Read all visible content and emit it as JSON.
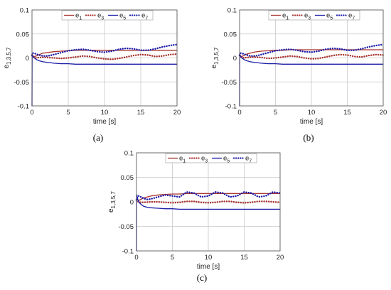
{
  "colors": {
    "e1": "#a8322d",
    "e3": "#a8322d",
    "e5": "#1a1aa8",
    "e7": "#1a1aa8",
    "grid": "#c8c8c8",
    "frame": "#606060"
  },
  "chart_data": [
    {
      "type": "line",
      "caption": "(a)",
      "xlabel": "time [s]",
      "ylabel": "e",
      "ylabel_sub": "1,3,5,7",
      "xlim": [
        0,
        20
      ],
      "ylim": [
        -0.1,
        0.1
      ],
      "xticks": [
        "0",
        "5",
        "10",
        "15",
        "20"
      ],
      "yticks": [
        "-0.1",
        "-0.05",
        "0",
        "0.05",
        "0.1"
      ],
      "grid": true,
      "legend_position": "top",
      "series": [
        {
          "name": "e",
          "sub": "1",
          "style": "solid",
          "x": [
            0,
            0.05,
            0.15,
            0.3,
            0.6,
            1,
            1.5,
            2,
            3,
            4,
            5,
            6,
            7,
            8,
            9,
            10,
            11,
            12,
            13,
            14,
            15,
            16,
            17,
            18,
            19,
            20
          ],
          "y": [
            0.008,
            0.007,
            0.004,
            0.003,
            0.004,
            0.007,
            0.01,
            0.011,
            0.013,
            0.014,
            0.015,
            0.016,
            0.016,
            0.016,
            0.016,
            0.016,
            0.016,
            0.016,
            0.016,
            0.016,
            0.016,
            0.016,
            0.016,
            0.016,
            0.016,
            0.016
          ]
        },
        {
          "name": "e",
          "sub": "3",
          "style": "dotted",
          "x": [
            0,
            0.1,
            0.3,
            0.6,
            1,
            2,
            3,
            4,
            5,
            6,
            7,
            8,
            9,
            10,
            11,
            12,
            13,
            14,
            15,
            16,
            17,
            18,
            19,
            20
          ],
          "y": [
            0.005,
            0.003,
            0.001,
            0,
            0.001,
            0.001,
            0,
            -0.001,
            0,
            0.002,
            0.004,
            0.003,
            0,
            -0.002,
            -0.003,
            -0.001,
            0.002,
            0.005,
            0.007,
            0.006,
            0.003,
            0.004,
            0.007,
            0.008
          ]
        },
        {
          "name": "e",
          "sub": "5",
          "style": "solid",
          "x": [
            0,
            0.02,
            0.05,
            0.1,
            0.2,
            0.4,
            0.7,
            1,
            1.5,
            2,
            3,
            4,
            5,
            6,
            8,
            10,
            12,
            14,
            16,
            18,
            20
          ],
          "y": [
            -0.1,
            0.005,
            0.006,
            0.004,
            0.002,
            -0.001,
            -0.004,
            -0.006,
            -0.008,
            -0.009,
            -0.011,
            -0.012,
            -0.012,
            -0.013,
            -0.013,
            -0.013,
            -0.013,
            -0.013,
            -0.013,
            -0.013,
            -0.013
          ]
        },
        {
          "name": "e",
          "sub": "7",
          "style": "dotted",
          "x": [
            0,
            0.1,
            0.3,
            0.6,
            1,
            1.5,
            2,
            2.5,
            3,
            4,
            5,
            6,
            7,
            8,
            9,
            10,
            11,
            12,
            13,
            14,
            15,
            16,
            17,
            18,
            19,
            20
          ],
          "y": [
            0.006,
            0.01,
            0.01,
            0.008,
            0.006,
            0.004,
            0.004,
            0.005,
            0.007,
            0.011,
            0.015,
            0.017,
            0.018,
            0.016,
            0.013,
            0.012,
            0.014,
            0.018,
            0.02,
            0.019,
            0.016,
            0.016,
            0.019,
            0.023,
            0.026,
            0.028
          ]
        }
      ]
    },
    {
      "type": "line",
      "caption": "(b)",
      "xlabel": "time [s]",
      "ylabel": "e",
      "ylabel_sub": "1,3,5,7",
      "xlim": [
        0,
        20
      ],
      "ylim": [
        -0.1,
        0.1
      ],
      "xticks": [
        "0",
        "5",
        "10",
        "15",
        "20"
      ],
      "yticks": [
        "-0.1",
        "-0.05",
        "0",
        "0.05",
        "0.1"
      ],
      "grid": true,
      "legend_position": "top",
      "series": [
        {
          "name": "e",
          "sub": "1",
          "style": "solid",
          "x": [
            0,
            0.05,
            0.15,
            0.3,
            0.6,
            1,
            1.5,
            2,
            3,
            4,
            5,
            6,
            7,
            8,
            9,
            10,
            11,
            12,
            13,
            14,
            15,
            16,
            17,
            18,
            19,
            20
          ],
          "y": [
            0.008,
            0.007,
            0.004,
            0.003,
            0.005,
            0.008,
            0.01,
            0.012,
            0.014,
            0.015,
            0.016,
            0.016,
            0.017,
            0.017,
            0.017,
            0.017,
            0.017,
            0.017,
            0.017,
            0.017,
            0.017,
            0.017,
            0.017,
            0.017,
            0.017,
            0.017
          ]
        },
        {
          "name": "e",
          "sub": "3",
          "style": "dotted",
          "x": [
            0,
            0.1,
            0.3,
            0.6,
            1,
            2,
            3,
            4,
            5,
            6,
            7,
            8,
            9,
            10,
            11,
            12,
            13,
            14,
            15,
            16,
            17,
            18,
            19,
            20
          ],
          "y": [
            0.005,
            0.003,
            0.001,
            0,
            0.001,
            0.002,
            0.001,
            -0.001,
            0,
            0.002,
            0.004,
            0.003,
            0,
            -0.002,
            -0.001,
            0.002,
            0.005,
            0.007,
            0.006,
            0.003,
            0.002,
            0.005,
            0.007,
            0.006
          ]
        },
        {
          "name": "e",
          "sub": "5",
          "style": "solid",
          "x": [
            0,
            0.02,
            0.05,
            0.1,
            0.2,
            0.4,
            0.7,
            1,
            1.5,
            2,
            3,
            4,
            5,
            6,
            8,
            10,
            12,
            14,
            16,
            18,
            20
          ],
          "y": [
            -0.1,
            0.005,
            0.006,
            0.004,
            0.002,
            -0.001,
            -0.004,
            -0.006,
            -0.008,
            -0.009,
            -0.011,
            -0.012,
            -0.012,
            -0.013,
            -0.013,
            -0.013,
            -0.013,
            -0.013,
            -0.013,
            -0.013,
            -0.013
          ]
        },
        {
          "name": "e",
          "sub": "7",
          "style": "dotted",
          "x": [
            0,
            0.1,
            0.3,
            0.6,
            1,
            1.5,
            2,
            2.5,
            3,
            4,
            5,
            6,
            7,
            8,
            9,
            10,
            11,
            12,
            13,
            14,
            15,
            16,
            17,
            18,
            19,
            20
          ],
          "y": [
            0.006,
            0.01,
            0.01,
            0.008,
            0.006,
            0.004,
            0.004,
            0.005,
            0.007,
            0.011,
            0.015,
            0.017,
            0.018,
            0.016,
            0.013,
            0.012,
            0.014,
            0.018,
            0.02,
            0.019,
            0.016,
            0.016,
            0.019,
            0.023,
            0.026,
            0.028
          ]
        }
      ]
    },
    {
      "type": "line",
      "caption": "(c)",
      "xlabel": "time [s]",
      "ylabel": "e",
      "ylabel_sub": "1,3,5,7",
      "xlim": [
        0,
        20
      ],
      "ylim": [
        -0.1,
        0.1
      ],
      "xticks": [
        "0",
        "5",
        "10",
        "15",
        "20"
      ],
      "yticks": [
        "-0.1",
        "-0.05",
        "0",
        "0.05",
        "0.1"
      ],
      "grid": true,
      "legend_position": "top",
      "series": [
        {
          "name": "e",
          "sub": "1",
          "style": "solid",
          "x": [
            0,
            0.05,
            0.15,
            0.3,
            0.6,
            1,
            1.5,
            2,
            3,
            4,
            5,
            6,
            7,
            8,
            9,
            10,
            11,
            12,
            13,
            14,
            15,
            16,
            17,
            18,
            19,
            20
          ],
          "y": [
            0.008,
            0.007,
            0.004,
            0.003,
            0.005,
            0.008,
            0.01,
            0.012,
            0.014,
            0.015,
            0.016,
            0.016,
            0.017,
            0.017,
            0.017,
            0.017,
            0.017,
            0.017,
            0.017,
            0.017,
            0.017,
            0.017,
            0.017,
            0.017,
            0.017,
            0.017
          ]
        },
        {
          "name": "e",
          "sub": "3",
          "style": "dotted",
          "x": [
            0,
            0.1,
            0.3,
            0.6,
            1,
            2,
            3,
            4,
            5,
            6,
            7,
            8,
            9,
            10,
            11,
            12,
            13,
            14,
            15,
            16,
            17,
            18,
            19,
            20
          ],
          "y": [
            0.004,
            0.002,
            0,
            -0.001,
            -0.001,
            0,
            0,
            -0.001,
            -0.002,
            -0.001,
            0.001,
            0.001,
            -0.001,
            -0.002,
            -0.001,
            0.001,
            0.001,
            -0.001,
            -0.002,
            -0.001,
            0.001,
            0.001,
            0,
            -0.001
          ]
        },
        {
          "name": "e",
          "sub": "5",
          "style": "solid",
          "x": [
            0,
            0.02,
            0.05,
            0.1,
            0.2,
            0.4,
            0.7,
            1,
            1.5,
            2,
            3,
            4,
            5,
            6,
            8,
            10,
            12,
            14,
            16,
            18,
            20
          ],
          "y": [
            -0.1,
            0.012,
            0.014,
            0.01,
            0.004,
            -0.002,
            -0.006,
            -0.009,
            -0.011,
            -0.012,
            -0.013,
            -0.014,
            -0.014,
            -0.015,
            -0.015,
            -0.015,
            -0.015,
            -0.015,
            -0.015,
            -0.015,
            -0.015
          ]
        },
        {
          "name": "e",
          "sub": "7",
          "style": "dotted",
          "x": [
            0,
            0.1,
            0.3,
            0.6,
            1,
            1.5,
            2,
            3,
            4,
            5,
            6,
            7,
            8,
            9,
            10,
            11,
            12,
            13,
            14,
            15,
            16,
            17,
            18,
            19,
            20
          ],
          "y": [
            0.004,
            0.01,
            0.012,
            0.01,
            0.007,
            0.005,
            0.006,
            0.01,
            0.014,
            0.012,
            0.01,
            0.02,
            0.018,
            0.01,
            0.012,
            0.02,
            0.018,
            0.01,
            0.012,
            0.02,
            0.018,
            0.01,
            0.012,
            0.02,
            0.018
          ]
        }
      ]
    }
  ]
}
